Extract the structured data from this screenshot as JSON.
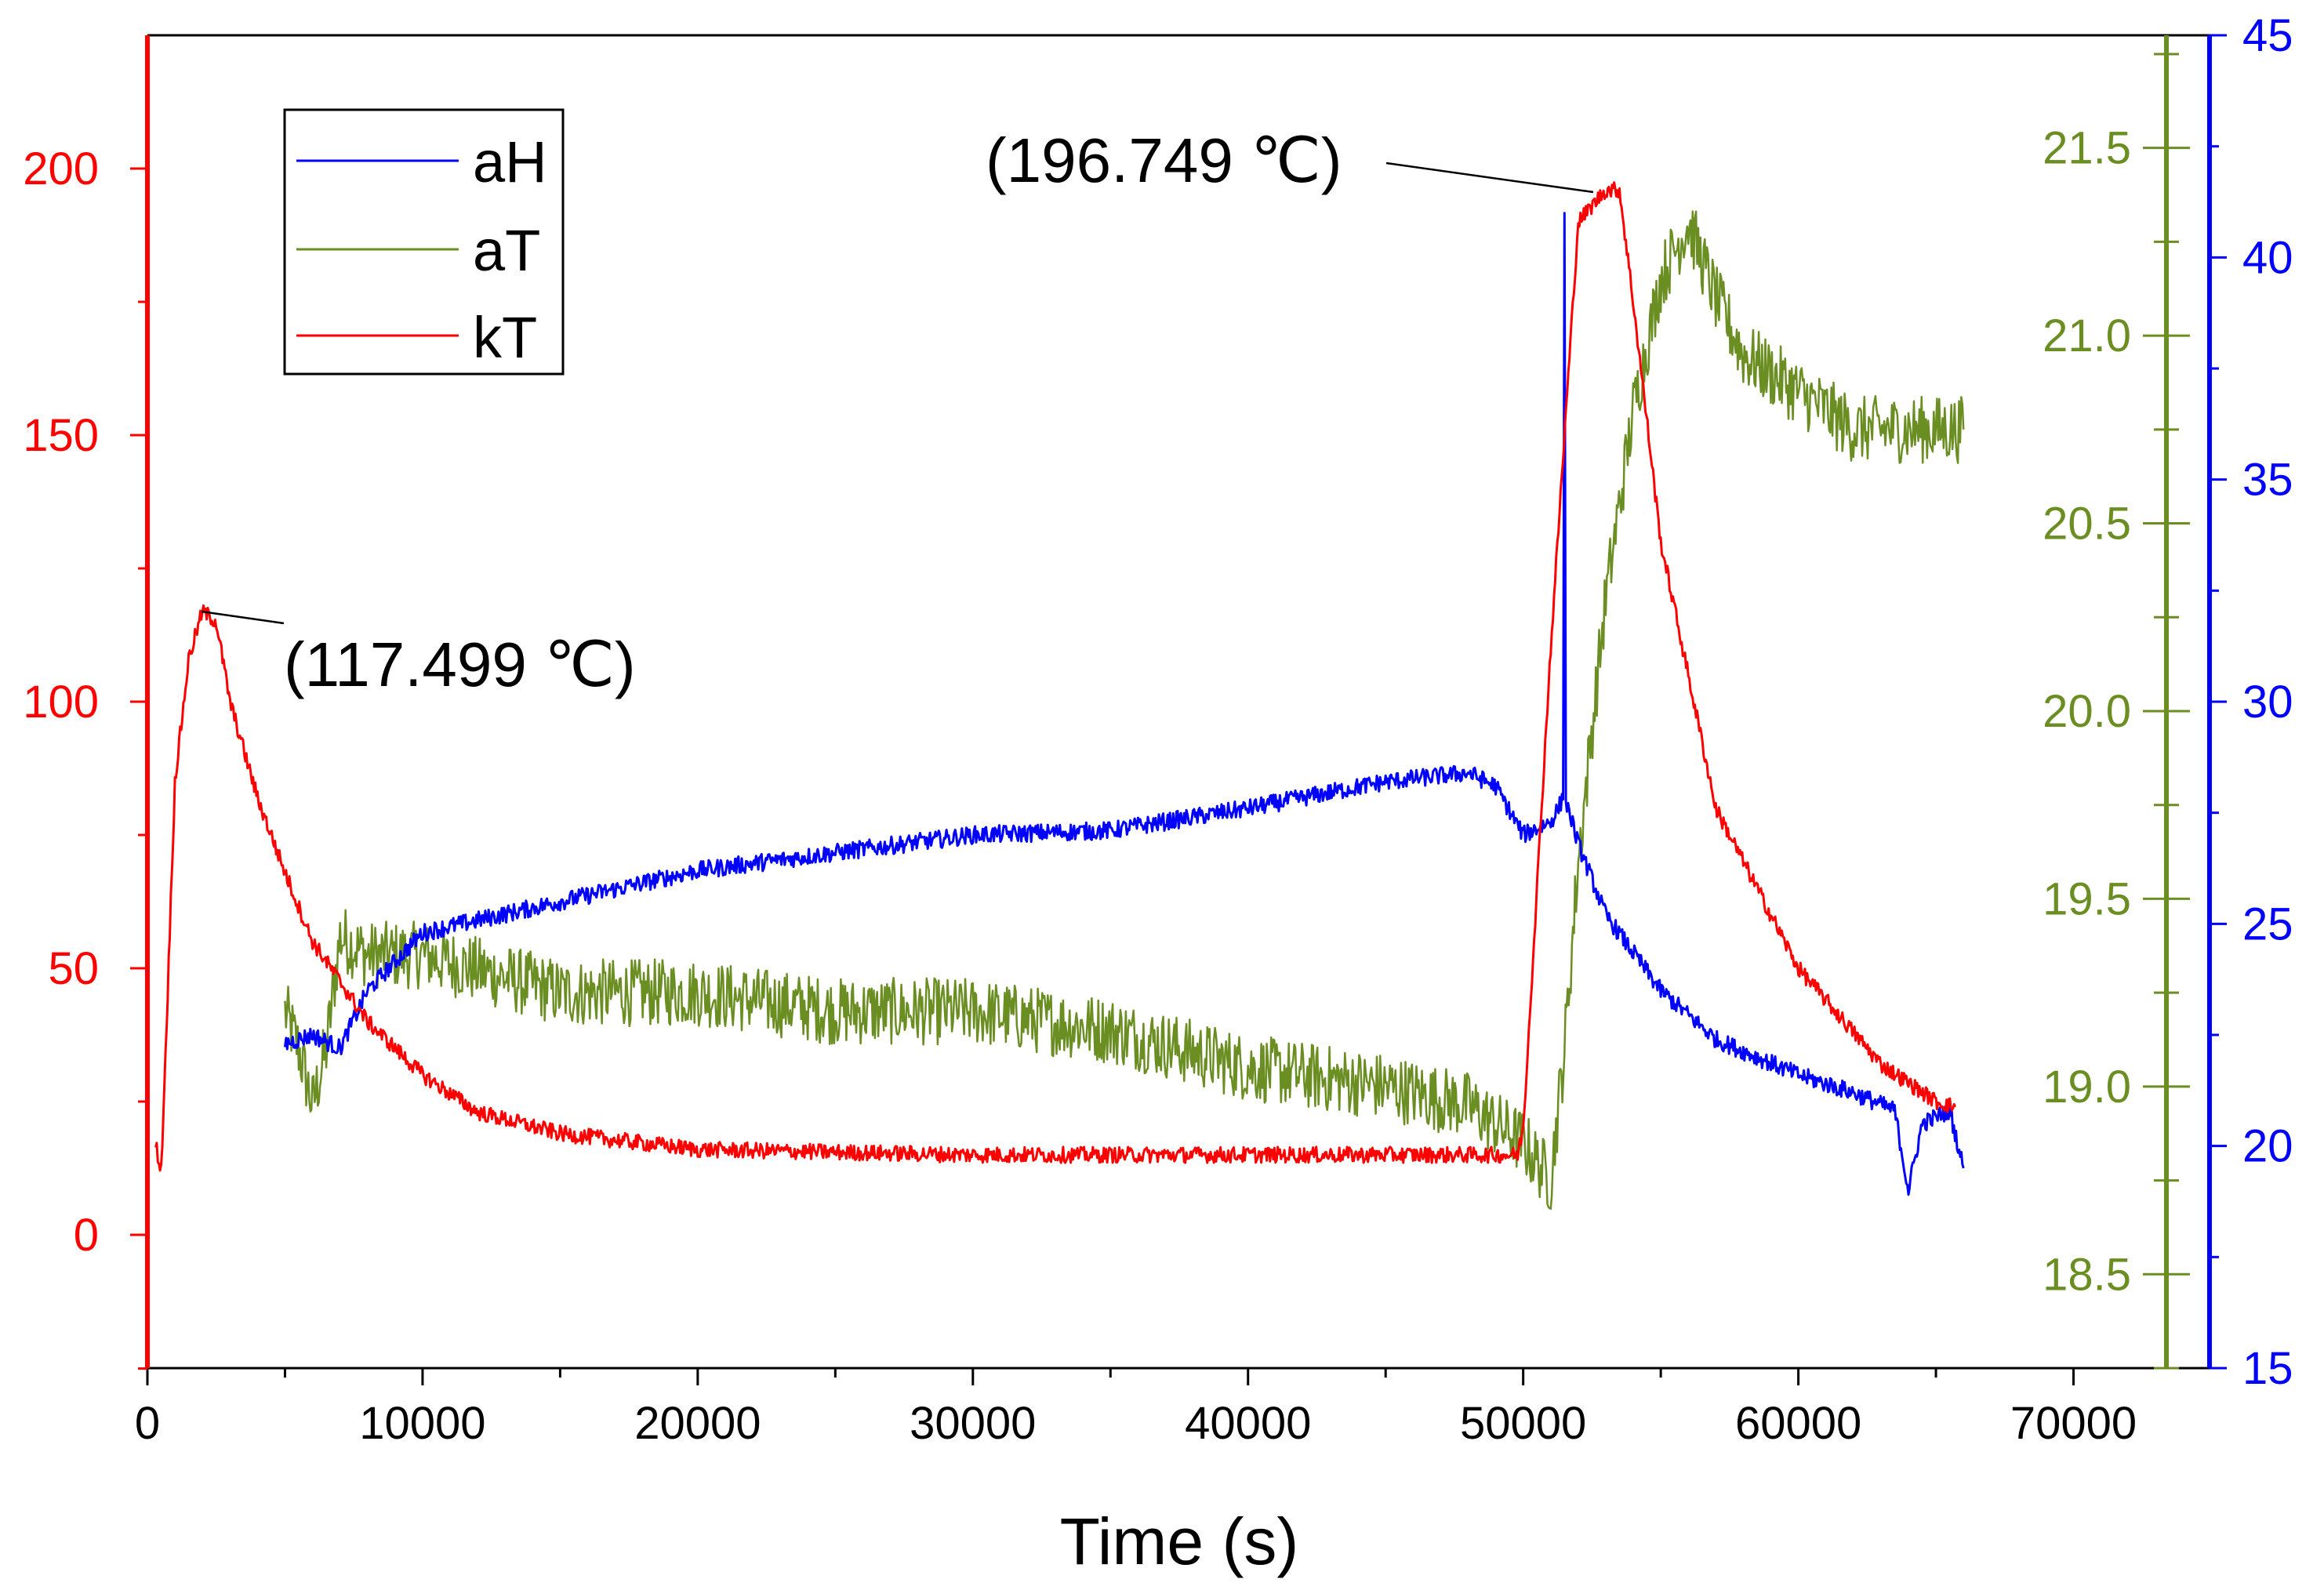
{
  "chart_data": {
    "type": "line",
    "xlabel": "Time (s)",
    "xlim": [
      0,
      75000
    ],
    "x_ticks": [
      0,
      10000,
      20000,
      30000,
      40000,
      50000,
      60000,
      70000
    ],
    "x_tick_labels": [
      "0",
      "10000",
      "20000",
      "30000",
      "40000",
      "50000",
      "60000",
      "70000"
    ],
    "axes": {
      "left": {
        "color": "#ff0000",
        "range": [
          -25,
          225
        ],
        "ticks": [
          0,
          50,
          100,
          150,
          200
        ],
        "tick_labels": [
          "0",
          "50",
          "100",
          "150",
          "200"
        ],
        "series": "kT"
      },
      "green": {
        "color": "#6b8e23",
        "range": [
          18.25,
          21.8
        ],
        "ticks": [
          18.5,
          19.0,
          19.5,
          20.0,
          20.5,
          21.0,
          21.5
        ],
        "tick_labels": [
          "18.5",
          "19.0",
          "19.5",
          "20.0",
          "20.5",
          "21.0",
          "21.5"
        ],
        "series": "aT"
      },
      "blue": {
        "color": "#0000ff",
        "range": [
          15,
          45
        ],
        "ticks": [
          15,
          20,
          25,
          30,
          35,
          40,
          45
        ],
        "tick_labels": [
          "15",
          "20",
          "25",
          "30",
          "35",
          "40",
          "45"
        ],
        "series": "aH"
      }
    },
    "legend": {
      "position": "top-left",
      "entries": [
        {
          "name": "aH",
          "color": "#0000ff"
        },
        {
          "name": "aT",
          "color": "#6b8e23"
        },
        {
          "name": "kT",
          "color": "#ff0000"
        }
      ]
    },
    "annotations": [
      {
        "text": "(117.499 ℃)",
        "x": 2000,
        "y": 117.499,
        "axis": "left"
      },
      {
        "text": "(196.749 ℃)",
        "x": 52800,
        "y": 196.749,
        "axis": "left"
      }
    ],
    "series": [
      {
        "name": "kT",
        "axis": "left",
        "color": "#ff0000",
        "noise": 1.5,
        "x": [
          300,
          500,
          700,
          1000,
          1500,
          2000,
          2500,
          3000,
          4000,
          5000,
          6000,
          8000,
          10000,
          12000,
          15000,
          20000,
          30000,
          40000,
          49800,
          50000,
          51000,
          52000,
          53000,
          53500,
          54000,
          55000,
          57000,
          60000,
          63000,
          65000,
          65700
        ],
        "y": [
          17,
          12,
          40,
          85,
          108,
          117,
          115,
          100,
          82,
          68,
          55,
          40,
          30,
          23,
          19,
          16,
          15,
          15,
          15,
          20,
          110,
          190,
          196,
          196,
          175,
          130,
          80,
          50,
          32,
          25,
          24
        ]
      },
      {
        "name": "aT",
        "axis": "green",
        "color": "#6b8e23",
        "noise": 0.09,
        "x": [
          5000,
          5500,
          6000,
          6500,
          7000,
          8000,
          10000,
          15000,
          20000,
          25000,
          30000,
          35000,
          40000,
          45000,
          48000,
          50000,
          51000,
          51500,
          52000,
          53000,
          54000,
          55000,
          56000,
          57000,
          58000,
          60000,
          62000,
          64000,
          66000
        ],
        "y": [
          19.2,
          19.1,
          18.95,
          19.1,
          19.4,
          19.35,
          19.35,
          19.25,
          19.25,
          19.2,
          19.2,
          19.15,
          19.05,
          19.0,
          18.95,
          18.85,
          18.75,
          19.1,
          19.6,
          20.3,
          20.8,
          21.15,
          21.3,
          21.1,
          20.95,
          20.85,
          20.75,
          20.75,
          20.75
        ]
      },
      {
        "name": "aH",
        "axis": "blue",
        "color": "#0000ff",
        "noise": 0.2,
        "x": [
          5000,
          6000,
          7000,
          8000,
          10000,
          15000,
          20000,
          25000,
          30000,
          35000,
          40000,
          45000,
          48000,
          49000,
          50000,
          51000,
          51450,
          51500,
          51550,
          52000,
          53000,
          55000,
          57000,
          60000,
          62000,
          63500,
          64000,
          64500,
          65500,
          66000
        ],
        "y": [
          22.3,
          22.5,
          22.2,
          23.5,
          24.8,
          25.5,
          26.2,
          26.6,
          27.0,
          27.1,
          27.6,
          28.2,
          28.4,
          28.1,
          27.0,
          27.3,
          27.8,
          41.0,
          27.8,
          26.8,
          25.2,
          23.5,
          22.4,
          21.6,
          21.2,
          20.8,
          19.0,
          20.5,
          20.8,
          19.5
        ]
      }
    ]
  }
}
